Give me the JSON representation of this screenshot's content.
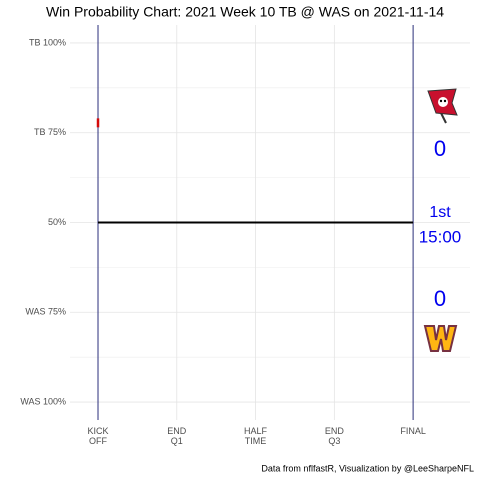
{
  "chart_data": {
    "type": "line",
    "title": "Win Probability Chart: 2021 Week 10 TB @ WAS on 2021-11-14",
    "caption": "Data from nflfastR, Visualization by @LeeSharpeNFL",
    "xlim": [
      -320,
      4250
    ],
    "xticks": [
      {
        "value": 0,
        "label": "KICK\nOFF"
      },
      {
        "value": 900,
        "label": "END\nQ1"
      },
      {
        "value": 1800,
        "label": "HALF\nTIME"
      },
      {
        "value": 2700,
        "label": "END\nQ3"
      },
      {
        "value": 3600,
        "label": "FINAL"
      }
    ],
    "ylim": [
      -5,
      105
    ],
    "yticks": [
      {
        "value": 100,
        "label": "TB 100%"
      },
      {
        "value": 75,
        "label": "TB 75%"
      },
      {
        "value": 50,
        "label": "50%"
      },
      {
        "value": 25,
        "label": "WAS 75%"
      },
      {
        "value": 0,
        "label": "WAS 100%"
      }
    ],
    "grid": true,
    "x": [
      0,
      3600
    ],
    "series": [
      {
        "color": "#000000",
        "values": [
          50,
          50
        ]
      }
    ],
    "pregame_marker": {
      "x": 0,
      "values": [
        76.5,
        79
      ],
      "color": "#d50a0a"
    },
    "scoreboard": {
      "tb_score": "0",
      "quarter": "1st",
      "clock": "15:00",
      "was_score": "0",
      "color": "#0000ee"
    },
    "period_line_color": "#2b2f7a"
  }
}
